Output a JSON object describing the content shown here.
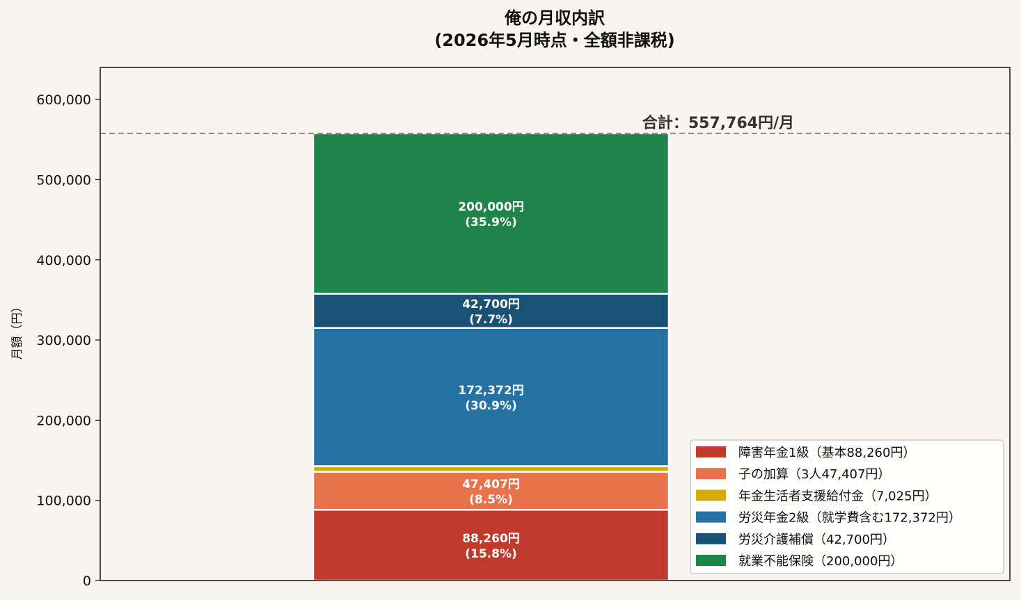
{
  "title": {
    "line1": "俺の月収内訳",
    "line2": "(2026年5月時点・全額非課税)"
  },
  "total_label": "合計：557,764円/月",
  "chart_data": {
    "type": "bar",
    "stacked": true,
    "categories": [
      ""
    ],
    "ylabel": "月額（円）",
    "ylim": [
      0,
      640000
    ],
    "yticks": [
      0,
      100000,
      200000,
      300000,
      400000,
      500000,
      600000
    ],
    "ytick_labels": [
      "0",
      "100,000",
      "200,000",
      "300,000",
      "400,000",
      "500,000",
      "600,000"
    ],
    "total": 557764,
    "legend_position": "lower-right",
    "grid": false,
    "series": [
      {
        "name": "障害年金1級（基本88,260円）",
        "value": 88260,
        "color": "#c0392b",
        "label_amount": "88,260円",
        "label_pct": "(15.8%)"
      },
      {
        "name": "子の加算（3人47,407円）",
        "value": 47407,
        "color": "#e8734a",
        "label_amount": "47,407円",
        "label_pct": "(8.5%)"
      },
      {
        "name": "年金生活者支援給付金（7,025円）",
        "value": 7025,
        "color": "#d4ac0d",
        "label_amount": "",
        "label_pct": ""
      },
      {
        "name": "労災年金2級（就学費含む172,372円）",
        "value": 172372,
        "color": "#2471a3",
        "label_amount": "172,372円",
        "label_pct": "(30.9%)"
      },
      {
        "name": "労災介護補償（42,700円）",
        "value": 42700,
        "color": "#1a5276",
        "label_amount": "42,700円",
        "label_pct": "(7.7%)"
      },
      {
        "name": "就業不能保険（200,000円）",
        "value": 200000,
        "color": "#1e8449",
        "label_amount": "200,000円",
        "label_pct": "(35.9%)"
      }
    ]
  }
}
